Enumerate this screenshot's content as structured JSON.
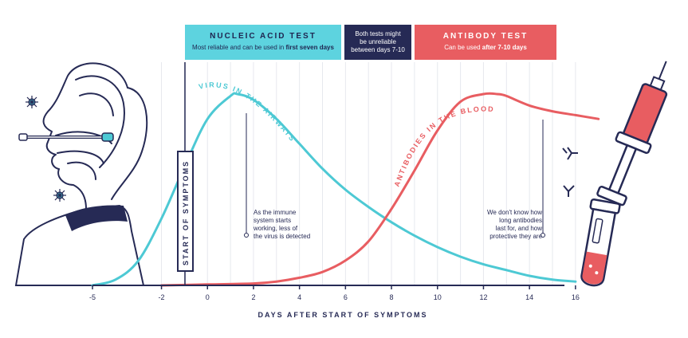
{
  "boxes": {
    "nucleic": {
      "title": "NUCLEIC ACID TEST",
      "sub_plain": "Most reliable and can be used in ",
      "sub_bold": "first seven days"
    },
    "unreliable": {
      "line1": "Both tests might",
      "line2": "be unreliable",
      "line3": "between days 7-10"
    },
    "antibody": {
      "title": "ANTIBODY TEST",
      "sub_plain": "Can be used ",
      "sub_bold": "after 7-10 days"
    }
  },
  "labels": {
    "start_of_symptoms": "START OF SYMPTOMS",
    "virus_curve": "VIRUS IN THE AIRWAYS",
    "antibody_curve": "ANTIBODIES IN THE BLOOD"
  },
  "notes": {
    "virus": [
      "As the immune",
      "system starts",
      "working, less of",
      "the virus is detected"
    ],
    "antibody": [
      "We don't know how",
      "long antibodies",
      "last for, and how",
      "protective they are"
    ]
  },
  "colors": {
    "cyan": "#4dc9d4",
    "red": "#e85d61",
    "navy": "#262a55",
    "grid": "#e6e8ee"
  },
  "chart_data": {
    "type": "line",
    "xlabel": "DAYS AFTER START OF SYMPTOMS",
    "ylabel": "",
    "xlim": [
      -5,
      16
    ],
    "x_ticks": [
      -5,
      -2,
      0,
      2,
      4,
      6,
      8,
      10,
      12,
      14,
      16
    ],
    "x_tick_labels": [
      "-5",
      "-2",
      "0",
      "2",
      "4",
      "6",
      "8",
      "10",
      "12",
      "14",
      "16"
    ],
    "series": [
      {
        "name": "VIRUS IN THE AIRWAYS",
        "x": [
          -5,
          -4,
          -3,
          -2,
          -1,
          0,
          1,
          1.3,
          2,
          3,
          4,
          5,
          6,
          7,
          8,
          9,
          10,
          11,
          12,
          13,
          14,
          15,
          16
        ],
        "y": [
          0,
          0.03,
          0.13,
          0.35,
          0.62,
          0.87,
          0.99,
          1.0,
          0.97,
          0.87,
          0.74,
          0.61,
          0.5,
          0.41,
          0.33,
          0.26,
          0.2,
          0.15,
          0.11,
          0.08,
          0.05,
          0.03,
          0.02
        ]
      },
      {
        "name": "ANTIBODIES IN THE BLOOD",
        "x": [
          -2,
          0,
          2,
          3,
          4,
          5,
          6,
          7,
          8,
          9,
          10,
          11,
          12,
          12.6,
          13,
          14,
          15,
          16,
          17
        ],
        "y": [
          0,
          0.005,
          0.01,
          0.02,
          0.04,
          0.07,
          0.13,
          0.23,
          0.4,
          0.6,
          0.81,
          0.96,
          1.0,
          1.0,
          0.99,
          0.94,
          0.91,
          0.89,
          0.87
        ]
      }
    ]
  }
}
